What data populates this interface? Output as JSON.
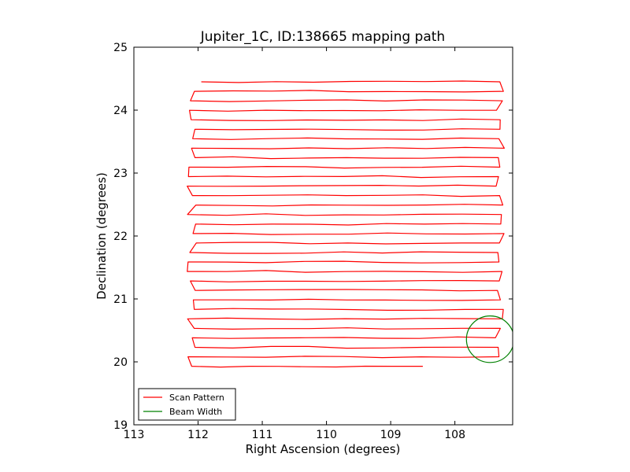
{
  "chart_data": {
    "type": "line",
    "title": "Jupiter_1C, ID:138665 mapping path",
    "xlabel": "Right Ascension (degrees)",
    "ylabel": "Declination (degrees)",
    "xlim": [
      113,
      107.1
    ],
    "ylim": [
      19,
      25
    ],
    "x_inverted": true,
    "xticks": [
      113,
      112,
      111,
      110,
      109,
      108
    ],
    "xtick_labels": [
      "113",
      "112",
      "111",
      "110",
      "109",
      "108"
    ],
    "yticks": [
      19,
      20,
      21,
      22,
      23,
      24,
      25
    ],
    "ytick_labels": [
      "19",
      "20",
      "21",
      "22",
      "23",
      "24",
      "25"
    ],
    "grid": false,
    "legend_position": "lower-left",
    "series": [
      {
        "name": "Scan Pattern",
        "color": "#ff0000",
        "kind": "raster",
        "ra_left": 112.1,
        "ra_right": 107.3,
        "dec_start": 19.93,
        "dec_end": 24.45,
        "row_count": 31,
        "start_ra": 108.5,
        "end_ra": 111.95
      },
      {
        "name": "Beam Width",
        "color": "#008000",
        "kind": "circle",
        "center_ra": 107.45,
        "center_dec": 20.36,
        "radius_deg": 0.37
      }
    ]
  }
}
